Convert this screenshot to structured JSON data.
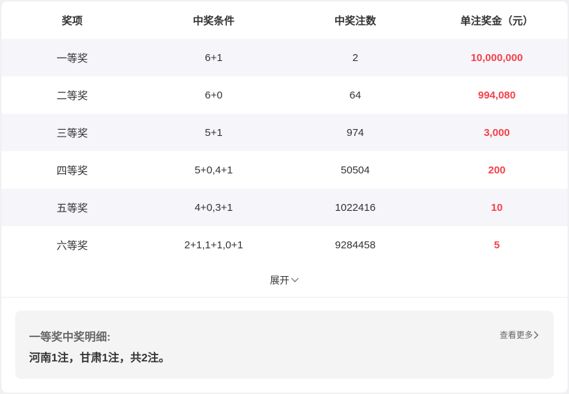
{
  "table": {
    "headers": [
      "奖项",
      "中奖条件",
      "中奖注数",
      "单注奖金（元）"
    ],
    "rows": [
      [
        "一等奖",
        "6+1",
        "2",
        "10,000,000"
      ],
      [
        "二等奖",
        "6+0",
        "64",
        "994,080"
      ],
      [
        "三等奖",
        "5+1",
        "974",
        "3,000"
      ],
      [
        "四等奖",
        "5+0,4+1",
        "50504",
        "200"
      ],
      [
        "五等奖",
        "4+0,3+1",
        "1022416",
        "10"
      ],
      [
        "六等奖",
        "2+1,1+1,0+1",
        "9284458",
        "5"
      ]
    ]
  },
  "expand_label": "展开",
  "detail": {
    "title": "一等奖中奖明细:",
    "body": "河南1注，甘肃1注，共2注。",
    "more_label": "查看更多"
  },
  "colors": {
    "prize": "#f5414a",
    "alt_row": "#f5f5fa"
  }
}
